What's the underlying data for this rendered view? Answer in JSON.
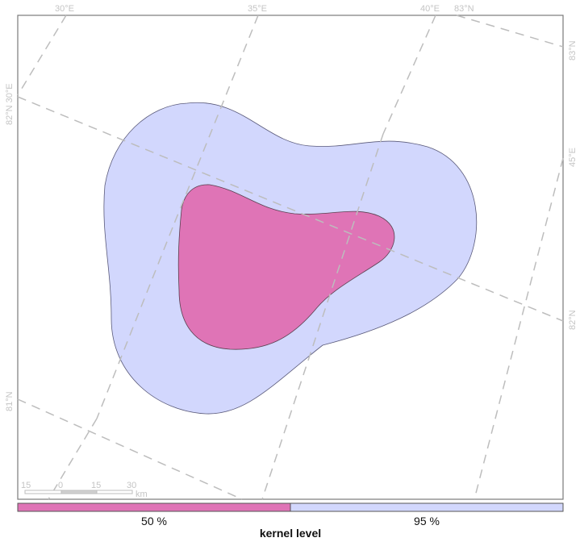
{
  "graticule_labels": {
    "lon_30_top": "30°E",
    "lon_35_top": "35°E",
    "lon_40_top": "40°E",
    "lat_83_top": "83°N",
    "lat_83_right": "83°N",
    "lat_82_left": "82°N 30°E",
    "lon_45_right": "45°E",
    "lat_82_right": "82°N",
    "lat_81_left": "81°N"
  },
  "scale_bar": {
    "ticks": [
      "15",
      "0",
      "15",
      "30"
    ],
    "unit": "km"
  },
  "legend": {
    "title": "kernel level",
    "items": [
      {
        "label": "50 %",
        "color": "#df74b6"
      },
      {
        "label": "95 %",
        "color": "#d2d7fd"
      }
    ]
  },
  "colors": {
    "kernel_50": "#df74b6",
    "kernel_95": "#d2d7fd",
    "graticule": "#bdbdbd"
  }
}
